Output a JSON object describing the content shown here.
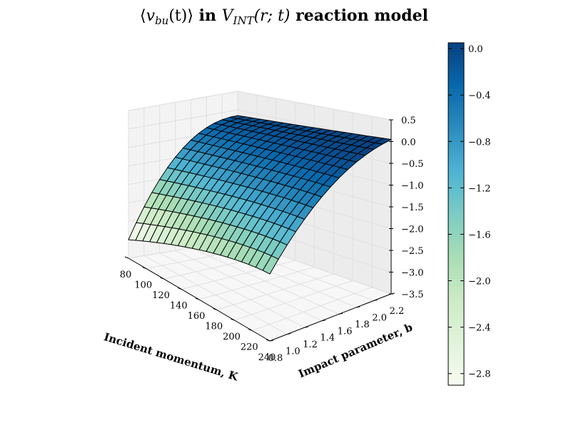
{
  "chart_data": {
    "type": "surface",
    "title_parts": {
      "open_bracket": "⟨",
      "v": "v",
      "v_sub": "bu",
      "arg": "(t)",
      "close_bracket": "⟩",
      "in_text": " in ",
      "V": "V",
      "V_sub": "INT",
      "V_arg": "(r; t)",
      "tail": " reaction model"
    },
    "xlabel": "Incident momentum, K",
    "ylabel": "Impact parameter, b",
    "zlabel": "",
    "x_ticks": [
      "80",
      "100",
      "120",
      "140",
      "160",
      "180",
      "200",
      "220",
      "240"
    ],
    "y_ticks": [
      "0.8",
      "1.0",
      "1.2",
      "1.4",
      "1.6",
      "1.8",
      "2.0",
      "2.2"
    ],
    "z_ticks": [
      "0.5",
      "0.0",
      "−0.5",
      "−1.0",
      "−1.5",
      "−2.0",
      "−2.5",
      "−3.0",
      "−3.5"
    ],
    "colorbar_ticks": [
      "0.0",
      "−0.4",
      "−0.8",
      "−1.2",
      "−1.6",
      "−2.0",
      "−2.4",
      "−2.8"
    ],
    "xlim": [
      80,
      240
    ],
    "ylim": [
      0.8,
      2.2
    ],
    "zlim": [
      -3.5,
      0.5
    ],
    "colorbar_range": [
      -2.9,
      0.05
    ],
    "colormap": "YlGnBu",
    "surface": {
      "x": [
        80,
        240
      ],
      "y": [
        0.8,
        2.2
      ],
      "corner_values": {
        "x80_y0.8": -3.0,
        "x240_y0.8": -1.8,
        "x80_y2.2": -0.15,
        "x240_y2.2": 0.05
      }
    },
    "grid": true,
    "legend": "colorbar-right"
  }
}
